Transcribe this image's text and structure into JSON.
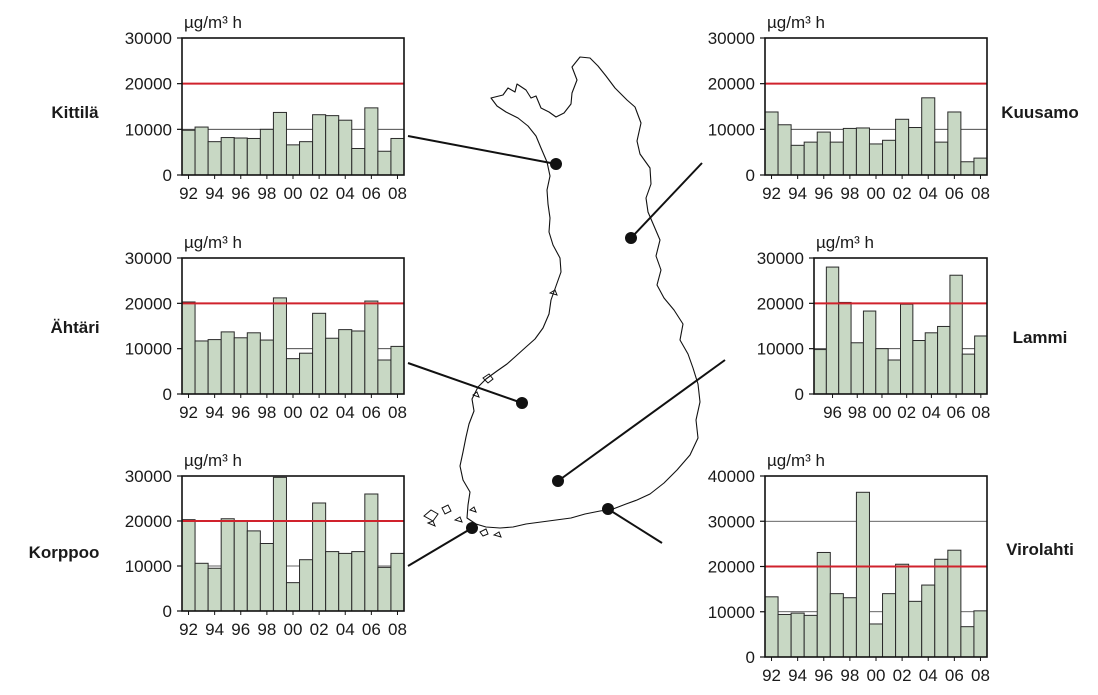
{
  "chart_data": [
    {
      "type": "bar",
      "station": "Kittilä",
      "unit": "µg/m³ h",
      "categories": [
        "92",
        "93",
        "94",
        "95",
        "96",
        "97",
        "98",
        "99",
        "00",
        "01",
        "02",
        "03",
        "04",
        "05",
        "06",
        "07",
        "08"
      ],
      "tick_labels": [
        "92",
        "94",
        "96",
        "98",
        "00",
        "02",
        "04",
        "06",
        "08"
      ],
      "values": [
        9800,
        10500,
        7300,
        8200,
        8100,
        8000,
        10000,
        13700,
        6600,
        7300,
        13200,
        13000,
        12000,
        5800,
        14700,
        5200,
        8000
      ],
      "threshold": 20000,
      "ylim": [
        0,
        30000
      ],
      "yticks": [
        0,
        10000,
        20000,
        30000
      ],
      "ytick_labels": [
        "0",
        "10000",
        "20000",
        "30000"
      ],
      "grid": true
    },
    {
      "type": "bar",
      "station": "Kuusamo",
      "unit": "µg/m³ h",
      "categories": [
        "92",
        "93",
        "94",
        "95",
        "96",
        "97",
        "98",
        "99",
        "00",
        "01",
        "02",
        "03",
        "04",
        "05",
        "06",
        "07",
        "08"
      ],
      "tick_labels": [
        "92",
        "94",
        "96",
        "98",
        "00",
        "02",
        "04",
        "06",
        "08"
      ],
      "values": [
        13800,
        11000,
        6500,
        7200,
        9400,
        7200,
        10200,
        10300,
        6800,
        7600,
        12200,
        10400,
        16900,
        7200,
        13800,
        2900,
        3700
      ],
      "threshold": 20000,
      "ylim": [
        0,
        30000
      ],
      "yticks": [
        0,
        10000,
        20000,
        30000
      ],
      "ytick_labels": [
        "0",
        "10000",
        "20000",
        "30000"
      ],
      "grid": true
    },
    {
      "type": "bar",
      "station": "Ähtäri",
      "unit": "µg/m³ h",
      "categories": [
        "92",
        "93",
        "94",
        "95",
        "96",
        "97",
        "98",
        "99",
        "00",
        "01",
        "02",
        "03",
        "04",
        "05",
        "06",
        "07",
        "08"
      ],
      "tick_labels": [
        "92",
        "94",
        "96",
        "98",
        "00",
        "02",
        "04",
        "06",
        "08"
      ],
      "values": [
        20300,
        11700,
        12000,
        13700,
        12400,
        13500,
        11900,
        21200,
        7800,
        9000,
        17800,
        12300,
        14200,
        13900,
        20500,
        7500,
        10500
      ],
      "threshold": 20000,
      "ylim": [
        0,
        30000
      ],
      "yticks": [
        0,
        10000,
        20000,
        30000
      ],
      "ytick_labels": [
        "0",
        "10000",
        "20000",
        "30000"
      ],
      "grid": true
    },
    {
      "type": "bar",
      "station": "Lammi",
      "unit": "µg/m³ h",
      "categories": [
        "95",
        "96",
        "97",
        "98",
        "99",
        "00",
        "01",
        "02",
        "03",
        "04",
        "05",
        "06",
        "07",
        "08"
      ],
      "tick_labels": [
        "96",
        "98",
        "00",
        "02",
        "04",
        "06",
        "08"
      ],
      "values": [
        9800,
        28000,
        20200,
        11300,
        18300,
        10000,
        7500,
        19800,
        11800,
        13500,
        14900,
        26200,
        8800,
        12800
      ],
      "threshold": 20000,
      "ylim": [
        0,
        30000
      ],
      "yticks": [
        0,
        10000,
        20000,
        30000
      ],
      "ytick_labels": [
        "0",
        "10000",
        "20000",
        "30000"
      ],
      "grid": true
    },
    {
      "type": "bar",
      "station": "Korppoo",
      "unit": "µg/m³ h",
      "categories": [
        "92",
        "93",
        "94",
        "95",
        "96",
        "97",
        "98",
        "99",
        "00",
        "01",
        "02",
        "03",
        "04",
        "05",
        "06",
        "07",
        "08"
      ],
      "tick_labels": [
        "92",
        "94",
        "96",
        "98",
        "00",
        "02",
        "04",
        "06",
        "08"
      ],
      "values": [
        20300,
        10600,
        9500,
        20500,
        20000,
        17800,
        15000,
        29700,
        6300,
        11400,
        24000,
        13200,
        12800,
        13200,
        26000,
        9700,
        12800
      ],
      "threshold": 20000,
      "ylim": [
        0,
        30000
      ],
      "yticks": [
        0,
        10000,
        20000,
        30000
      ],
      "ytick_labels": [
        "0",
        "10000",
        "20000",
        "30000"
      ],
      "grid": true
    },
    {
      "type": "bar",
      "station": "Virolahti",
      "unit": "µg/m³ h",
      "categories": [
        "92",
        "93",
        "94",
        "95",
        "96",
        "97",
        "98",
        "99",
        "00",
        "01",
        "02",
        "03",
        "04",
        "05",
        "06",
        "07",
        "08"
      ],
      "tick_labels": [
        "92",
        "94",
        "96",
        "98",
        "00",
        "02",
        "04",
        "06",
        "08"
      ],
      "values": [
        13300,
        9400,
        9700,
        9200,
        23100,
        14000,
        13100,
        36400,
        7300,
        14000,
        20500,
        12300,
        15900,
        21600,
        23600,
        6700,
        10200
      ],
      "threshold": 20000,
      "ylim": [
        0,
        40000
      ],
      "yticks": [
        0,
        10000,
        20000,
        30000,
        40000
      ],
      "ytick_labels": [
        "0",
        "10000",
        "20000",
        "30000",
        "40000"
      ],
      "grid": true
    }
  ],
  "colors": {
    "bar_fill": "#c8d8c4",
    "bar_stroke": "#2a2a2a",
    "threshold": "#d0222c",
    "grid": "#333333",
    "map_outline": "#111111",
    "leader": "#111111"
  }
}
